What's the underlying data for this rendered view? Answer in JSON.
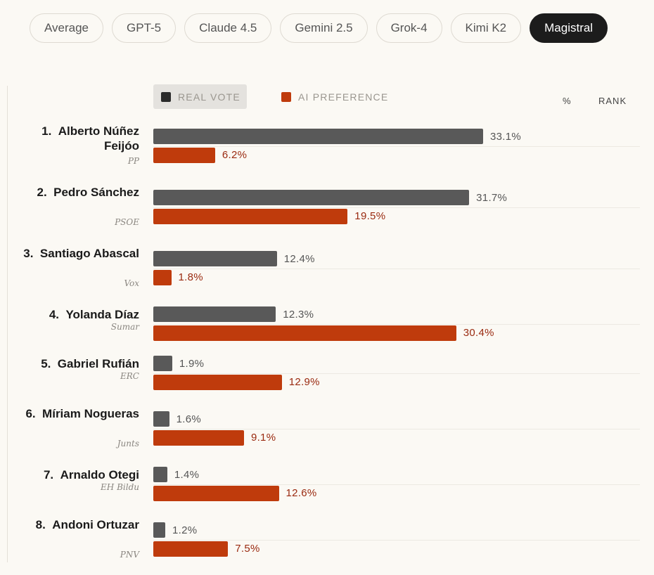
{
  "tabs": [
    {
      "label": "Average",
      "active": false
    },
    {
      "label": "GPT-5",
      "active": false
    },
    {
      "label": "Claude 4.5",
      "active": false
    },
    {
      "label": "Gemini 2.5",
      "active": false
    },
    {
      "label": "Grok-4",
      "active": false
    },
    {
      "label": "Kimi K2",
      "active": false
    },
    {
      "label": "Magistral",
      "active": true
    }
  ],
  "legend": {
    "real_label": "REAL VOTE",
    "ai_label": "AI PREFERENCE",
    "real_color": "#595959",
    "ai_color": "#bf3b0c"
  },
  "columns": {
    "pct": "%",
    "rank": "RANK"
  },
  "chart_data": {
    "type": "bar",
    "orientation": "horizontal",
    "series": [
      {
        "name": "REAL VOTE",
        "values": [
          33.1,
          31.7,
          12.4,
          12.3,
          1.9,
          1.6,
          1.4,
          1.2
        ]
      },
      {
        "name": "AI PREFERENCE",
        "values": [
          6.2,
          19.5,
          1.8,
          30.4,
          12.9,
          9.1,
          12.6,
          7.5
        ]
      }
    ],
    "xlim": [
      0,
      50
    ],
    "unit": "%",
    "candidates": [
      {
        "rank": "1.",
        "name": "Alberto Núñez Feijóo",
        "party": "PP",
        "real": 33.1,
        "ai": 6.2,
        "real_label": "33.1%",
        "ai_label": "6.2%"
      },
      {
        "rank": "2.",
        "name": "Pedro Sánchez",
        "party": "PSOE",
        "real": 31.7,
        "ai": 19.5,
        "real_label": "31.7%",
        "ai_label": "19.5%"
      },
      {
        "rank": "3.",
        "name": "Santiago Abascal",
        "party": "Vox",
        "real": 12.4,
        "ai": 1.8,
        "real_label": "12.4%",
        "ai_label": "1.8%"
      },
      {
        "rank": "4.",
        "name": "Yolanda Díaz",
        "party": "Sumar",
        "real": 12.3,
        "ai": 30.4,
        "real_label": "12.3%",
        "ai_label": "30.4%"
      },
      {
        "rank": "5.",
        "name": "Gabriel Rufián",
        "party": "ERC",
        "real": 1.9,
        "ai": 12.9,
        "real_label": "1.9%",
        "ai_label": "12.9%"
      },
      {
        "rank": "6.",
        "name": "Míriam Nogueras",
        "party": "Junts",
        "real": 1.6,
        "ai": 9.1,
        "real_label": "1.6%",
        "ai_label": "9.1%"
      },
      {
        "rank": "7.",
        "name": "Arnaldo Otegi",
        "party": "EH Bildu",
        "real": 1.4,
        "ai": 12.6,
        "real_label": "1.4%",
        "ai_label": "12.6%"
      },
      {
        "rank": "8.",
        "name": "Andoni Ortuzar",
        "party": "PNV",
        "real": 1.2,
        "ai": 7.5,
        "real_label": "1.2%",
        "ai_label": "7.5%"
      }
    ]
  }
}
